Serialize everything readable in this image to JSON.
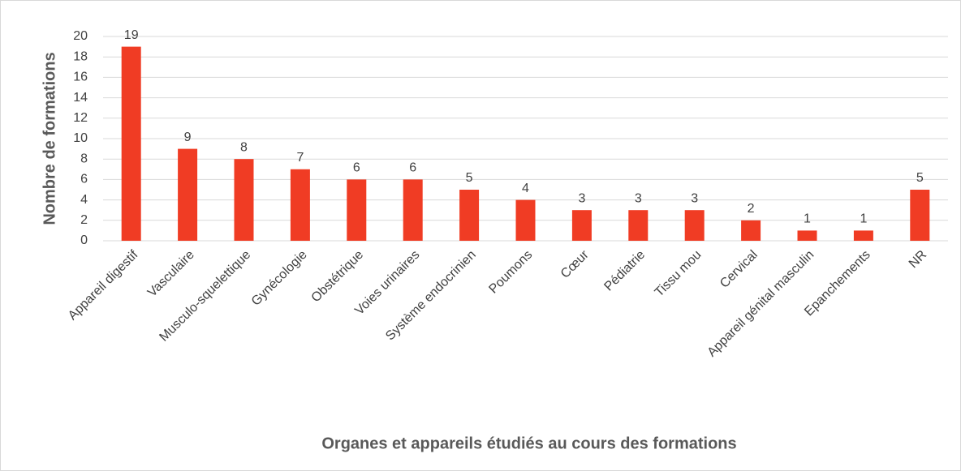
{
  "chart_data": {
    "type": "bar",
    "categories": [
      "Appareil digestif",
      "Vasculaire",
      "Musculo-squelettique",
      "Gynécologie",
      "Obstétrique",
      "Voies urinaires",
      "Système endocrinien",
      "Poumons",
      "Cœur",
      "Pédiatrie",
      "Tissu mou",
      "Cervical",
      "Appareil génital masculin",
      "Epanchements",
      "NR"
    ],
    "values": [
      19,
      9,
      8,
      7,
      6,
      6,
      5,
      4,
      3,
      3,
      3,
      2,
      1,
      1,
      5
    ],
    "color": "#f03c24",
    "ylabel": "Nombre de formations",
    "xlabel": "Organes et appareils étudiés au cours des formations",
    "ylim": [
      0,
      20
    ],
    "yticks": [
      0,
      2,
      4,
      6,
      8,
      10,
      12,
      14,
      16,
      18,
      20
    ],
    "grid": true
  }
}
